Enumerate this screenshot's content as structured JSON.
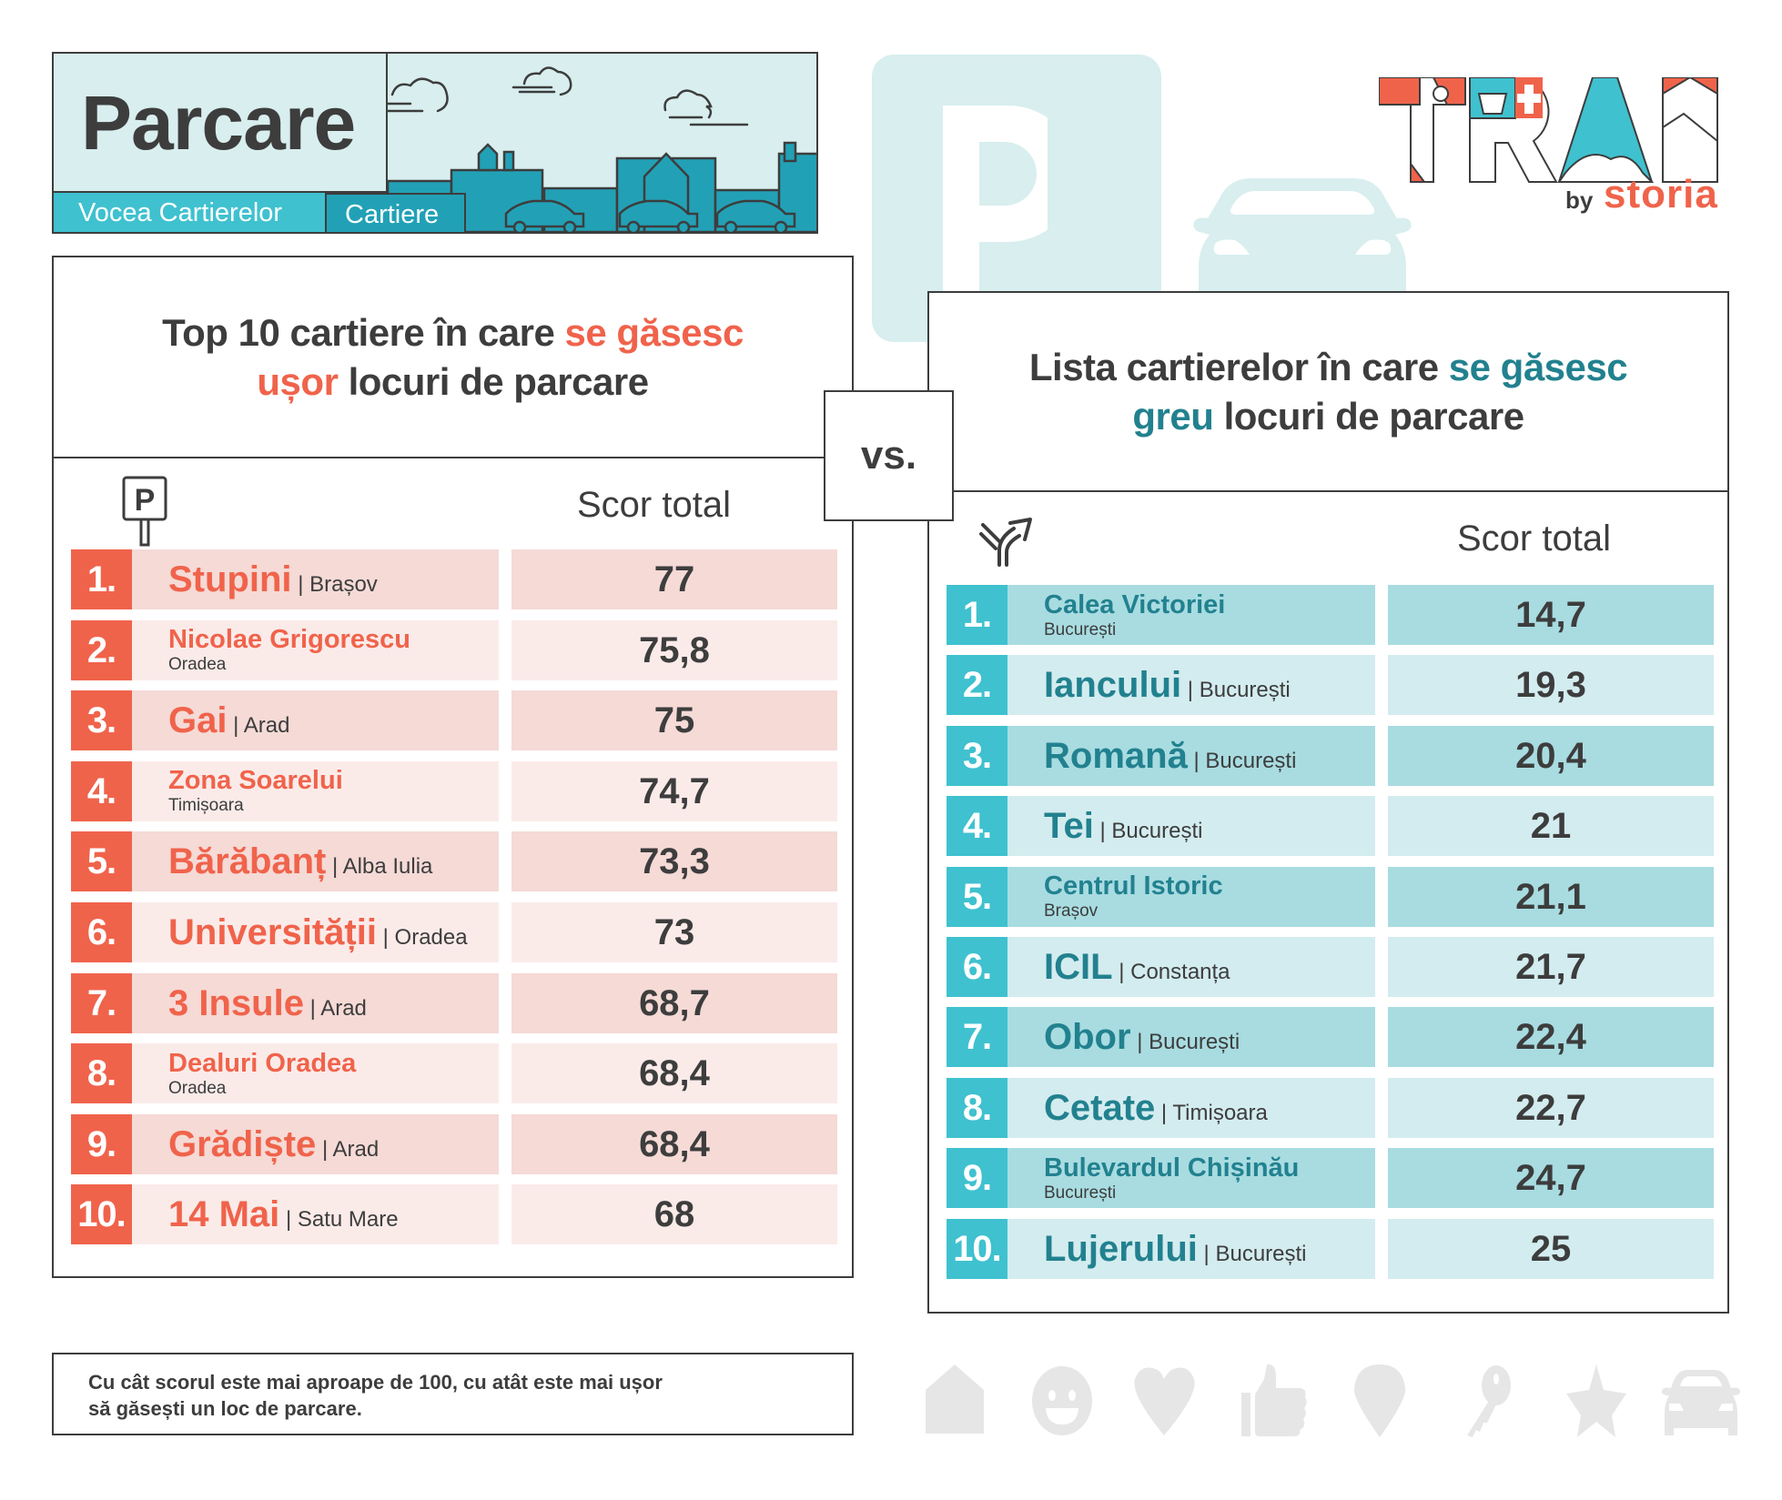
{
  "banner": {
    "title": "Parcare",
    "tabs": [
      {
        "label": "Vocea Cartierelor"
      },
      {
        "label": "Cartiere"
      }
    ]
  },
  "logo": {
    "wordmark": "TRAI",
    "by": "by",
    "brand": "storia"
  },
  "colors": {
    "coral": "#f0634b",
    "teal_dark": "#22818f",
    "teal_light": "#3fc1cf",
    "text": "#3d3d3d",
    "pale_teal": "#d9eeee"
  },
  "vs_label": "vs.",
  "left_table": {
    "title_parts": [
      {
        "text": "Top 10 cartiere în care ",
        "highlight": false
      },
      {
        "text": "se găsesc",
        "highlight": true
      },
      {
        "text": "ușor",
        "highlight": true,
        "newline_before": true
      },
      {
        "text": " locuri de parcare",
        "highlight": false
      }
    ],
    "title_line1_plain": "Top 10 cartiere în care ",
    "title_line1_hl": "se găsesc",
    "title_line2_hl": "ușor",
    "title_line2_plain": " locuri de parcare",
    "column_icon": "parking-sign-icon",
    "score_header": "Scor total",
    "rows": [
      {
        "rank": "1.",
        "name": "Stupini",
        "city": "Brașov",
        "layout": "inline",
        "score": "77"
      },
      {
        "rank": "2.",
        "name": "Nicolae Grigorescu",
        "city": "Oradea",
        "layout": "below",
        "score": "75,8"
      },
      {
        "rank": "3.",
        "name": "Gai",
        "city": "Arad",
        "layout": "inline",
        "score": "75"
      },
      {
        "rank": "4.",
        "name": "Zona Soarelui",
        "city": "Timișoara",
        "layout": "below",
        "score": "74,7"
      },
      {
        "rank": "5.",
        "name": "Bărăbanț",
        "city": "Alba Iulia",
        "layout": "inline",
        "score": "73,3"
      },
      {
        "rank": "6.",
        "name": "Universității",
        "city": "Oradea",
        "layout": "inline",
        "score": "73"
      },
      {
        "rank": "7.",
        "name": "3 Insule",
        "city": "Arad",
        "layout": "inline",
        "score": "68,7"
      },
      {
        "rank": "8.",
        "name": "Dealuri Oradea",
        "city": "Oradea",
        "layout": "below",
        "score": "68,4"
      },
      {
        "rank": "9.",
        "name": "Grădiște",
        "city": "Arad",
        "layout": "inline",
        "score": "68,4"
      },
      {
        "rank": "10.",
        "name": "14 Mai",
        "city": "Satu Mare",
        "layout": "inline",
        "score": "68"
      }
    ]
  },
  "right_table": {
    "title_line1_plain": "Lista cartierelor în care ",
    "title_line1_hl": "se găsesc",
    "title_line2_hl": "greu",
    "title_line2_plain": " locuri de parcare",
    "column_icon": "road-branch-icon",
    "score_header": "Scor total",
    "rows": [
      {
        "rank": "1.",
        "name": "Calea Victoriei",
        "city": "București",
        "layout": "below",
        "score": "14,7"
      },
      {
        "rank": "2.",
        "name": "Iancului",
        "city": "București",
        "layout": "inline",
        "score": "19,3"
      },
      {
        "rank": "3.",
        "name": "Romană",
        "city": "București",
        "layout": "inline",
        "score": "20,4"
      },
      {
        "rank": "4.",
        "name": "Tei",
        "city": "București",
        "layout": "inline",
        "score": "21"
      },
      {
        "rank": "5.",
        "name": "Centrul Istoric",
        "city": "Brașov",
        "layout": "below",
        "score": "21,1"
      },
      {
        "rank": "6.",
        "name": "ICIL",
        "city": "Constanța",
        "layout": "inline",
        "score": "21,7"
      },
      {
        "rank": "7.",
        "name": "Obor",
        "city": "București",
        "layout": "inline",
        "score": "22,4"
      },
      {
        "rank": "8.",
        "name": "Cetate",
        "city": "Timișoara",
        "layout": "inline",
        "score": "22,7"
      },
      {
        "rank": "9.",
        "name": "Bulevardul Chișinău",
        "city": "București",
        "layout": "below",
        "score": "24,7"
      },
      {
        "rank": "10.",
        "name": "Lujerului",
        "city": "București",
        "layout": "inline",
        "score": "25"
      }
    ]
  },
  "footnote": {
    "line1": "Cu cât scorul este mai aproape de 100, cu atât este mai ușor",
    "line2": "să găsești un loc de parcare."
  },
  "bottom_icons": [
    "house-icon",
    "smiley-icon",
    "heart-icon",
    "thumbs-up-icon",
    "location-pin-icon",
    "key-icon",
    "star-icon",
    "car-icon"
  ]
}
